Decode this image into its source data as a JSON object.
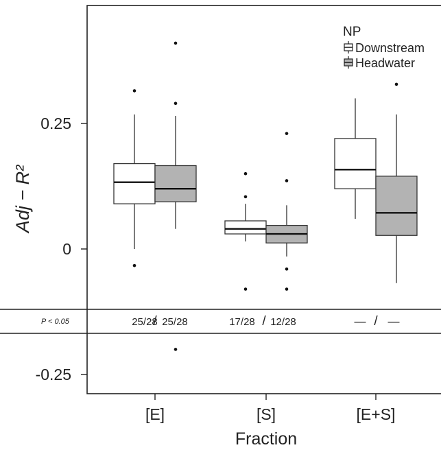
{
  "chart_data": {
    "type": "box",
    "ylabel": "Adj − R²",
    "xlabel": "Fraction",
    "categories": [
      "[E]",
      "[S]",
      "[E+S]"
    ],
    "ylim": [
      -0.31,
      0.48
    ],
    "y_ticks": [
      {
        "value": 0.25,
        "label": "0.25"
      },
      {
        "value": 0,
        "label": "0"
      },
      {
        "value": -0.25,
        "label": "-0.25"
      }
    ],
    "legend": {
      "title": "NP",
      "position": "top-right"
    },
    "series": [
      {
        "name": "Downstream",
        "color": "#ffffff",
        "boxes": [
          {
            "category": "[E]",
            "whisker_low": 0.0,
            "q1": 0.09,
            "median": 0.133,
            "q3": 0.17,
            "whisker_high": 0.268,
            "outliers": [
              -0.033,
              0.315
            ]
          },
          {
            "category": "[S]",
            "whisker_low": 0.015,
            "q1": 0.03,
            "median": 0.04,
            "q3": 0.056,
            "whisker_high": 0.09,
            "outliers": [
              -0.08,
              0.104,
              0.15
            ]
          },
          {
            "category": "[E+S]",
            "whisker_low": 0.06,
            "q1": 0.12,
            "median": 0.158,
            "q3": 0.22,
            "whisker_high": 0.3,
            "outliers": []
          }
        ]
      },
      {
        "name": "Headwater",
        "color": "#b3b3b3",
        "boxes": [
          {
            "category": "[E]",
            "whisker_low": 0.04,
            "q1": 0.094,
            "median": 0.12,
            "q3": 0.166,
            "whisker_high": 0.265,
            "outliers": [
              -0.2,
              0.29,
              0.41
            ]
          },
          {
            "category": "[S]",
            "whisker_low": -0.015,
            "q1": 0.012,
            "median": 0.03,
            "q3": 0.047,
            "whisker_high": 0.087,
            "outliers": [
              -0.04,
              -0.08,
              0.136,
              0.23
            ]
          },
          {
            "category": "[E+S]",
            "whisker_low": -0.068,
            "q1": 0.027,
            "median": 0.072,
            "q3": 0.145,
            "whisker_high": 0.268,
            "outliers": [
              0.328
            ]
          }
        ]
      }
    ],
    "pvalue_band": {
      "label": "P < 0.05",
      "entries": [
        {
          "category": "[E]",
          "downstream": "25/28",
          "separator": "/",
          "headwater": "25/28"
        },
        {
          "category": "[S]",
          "downstream": "17/28",
          "separator": "/",
          "headwater": "12/28"
        },
        {
          "category": "[E+S]",
          "downstream": "—",
          "separator": "/",
          "headwater": "—"
        }
      ]
    }
  }
}
